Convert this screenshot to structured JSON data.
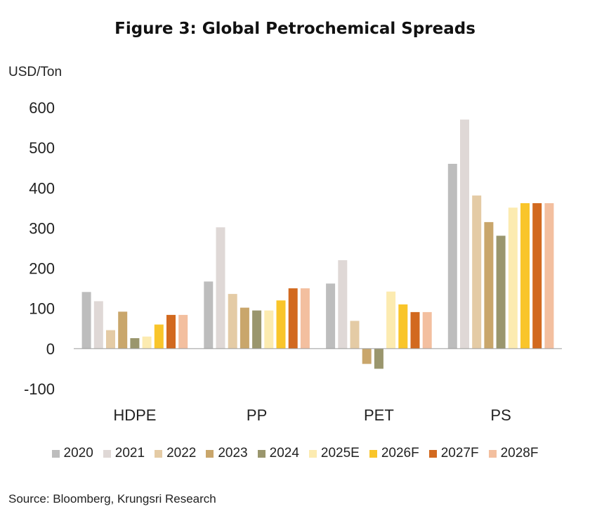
{
  "chart_data": {
    "type": "bar",
    "title": "Figure 3: Global Petrochemical Spreads",
    "ylabel": "USD/Ton",
    "xlabel": "",
    "ylim": [
      -100,
      600
    ],
    "yticks": [
      600,
      500,
      400,
      300,
      200,
      100,
      0,
      -100
    ],
    "categories": [
      "HDPE",
      "PP",
      "PET",
      "PS"
    ],
    "series": [
      {
        "name": "2020",
        "color": "#bdbdbd",
        "values": [
          141,
          167,
          162,
          460
        ]
      },
      {
        "name": "2021",
        "color": "#dfd8d6",
        "values": [
          118,
          302,
          220,
          570
        ]
      },
      {
        "name": "2022",
        "color": "#e4cba5",
        "values": [
          46,
          136,
          69,
          381
        ]
      },
      {
        "name": "2023",
        "color": "#c9a66b",
        "values": [
          92,
          102,
          -38,
          315
        ]
      },
      {
        "name": "2024",
        "color": "#9a966d",
        "values": [
          26,
          95,
          -50,
          281
        ]
      },
      {
        "name": "2025E",
        "color": "#fcebb0",
        "values": [
          30,
          95,
          142,
          351
        ]
      },
      {
        "name": "2026F",
        "color": "#f9c52a",
        "values": [
          60,
          120,
          110,
          362
        ]
      },
      {
        "name": "2027F",
        "color": "#d2691f",
        "values": [
          84,
          150,
          91,
          362
        ]
      },
      {
        "name": "2028F",
        "color": "#f3bf9f",
        "values": [
          84,
          150,
          91,
          362
        ]
      }
    ],
    "legend_position": "bottom",
    "grid": false
  },
  "source": "Source: Bloomberg, Krungsri Research"
}
